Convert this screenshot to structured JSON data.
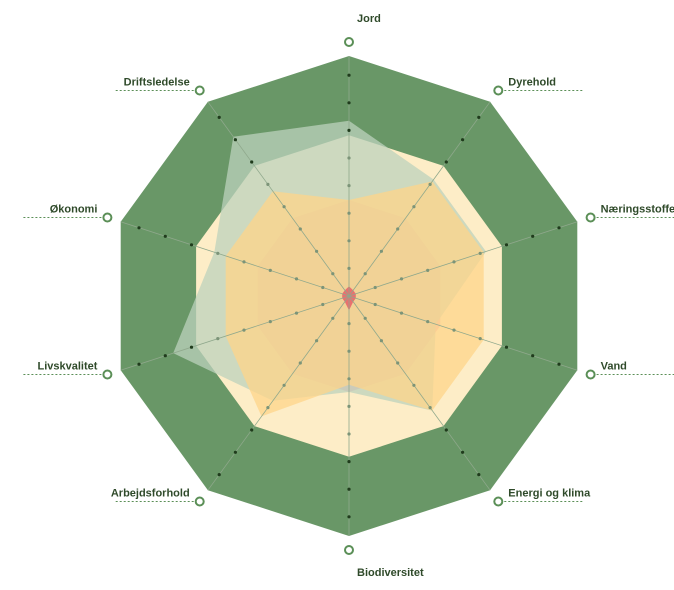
{
  "chart_data": {
    "type": "radar",
    "title": "",
    "axes": [
      "Jord",
      "Dyrehold",
      "Næringsstoffer",
      "Vand",
      "Energi og klima",
      "Biodiversitet",
      "Arbejdsforhold",
      "Livskvalitet",
      "Økonomi",
      "Driftsledelse"
    ],
    "range": [
      0,
      100
    ],
    "bands": [
      {
        "max": 100,
        "color": "#3f7a3c",
        "opacity": 0.78
      },
      {
        "max": 67,
        "color": "#fdedc7",
        "opacity": 1
      },
      {
        "max": 40,
        "color": "#f4b3b3",
        "opacity": 0.9
      }
    ],
    "series": [
      {
        "values": [
          73,
          60,
          60,
          38,
          59,
          40,
          54,
          77,
          59,
          82
        ],
        "color": "#bcd2bc",
        "opacity": 0.75
      },
      {
        "values": [
          40,
          59,
          59,
          59,
          59,
          37,
          62,
          54,
          54,
          54
        ],
        "color": "#fdd48a",
        "opacity": 0.75
      },
      {
        "values": [
          4,
          3,
          3,
          3,
          3,
          6,
          3,
          3,
          3,
          3
        ],
        "color": "#e8666a",
        "opacity": 0.9
      }
    ],
    "grid": true,
    "legend": "none",
    "colors": {
      "axis_line": "#8fa88c",
      "marker": "#1f3b1c",
      "label_line": "#5b8f57"
    }
  }
}
